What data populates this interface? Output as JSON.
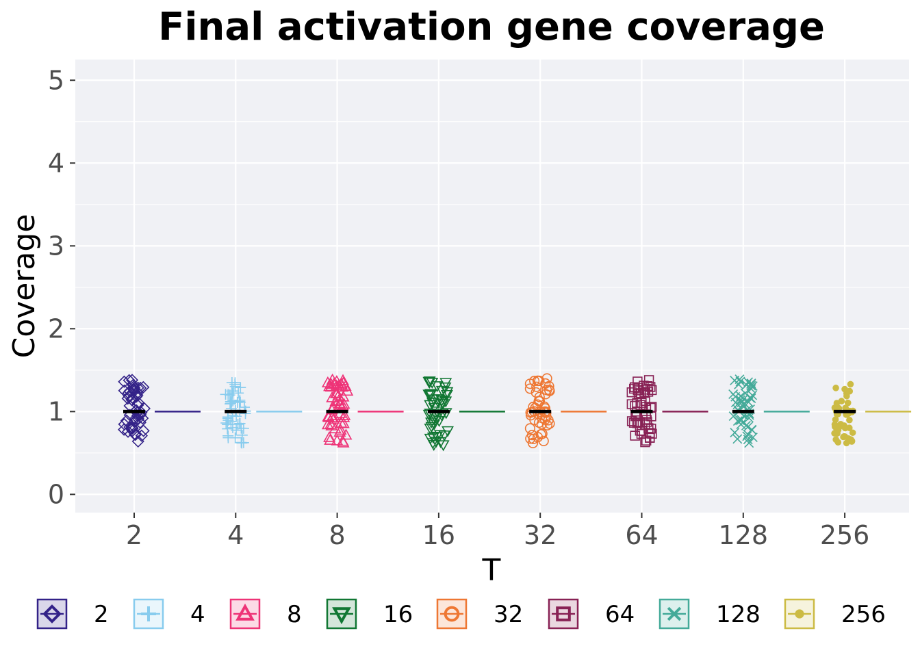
{
  "chart_data": {
    "type": "scatter",
    "title": "Final activation gene coverage",
    "xlabel": "T",
    "ylabel": "Coverage",
    "ylim": [
      -0.22,
      5.25
    ],
    "yticks": [
      0,
      1,
      2,
      3,
      4,
      5
    ],
    "grid": true,
    "legend_position": "bottom",
    "categories": [
      "2",
      "4",
      "8",
      "16",
      "32",
      "64",
      "128",
      "256"
    ],
    "series": [
      {
        "name": "2",
        "color": "#332288",
        "shape": "diamond",
        "median": 1.0,
        "min": 0.64,
        "max": 1.38,
        "count": 50
      },
      {
        "name": "4",
        "color": "#88CCEE",
        "shape": "plus",
        "median": 1.0,
        "min": 0.62,
        "max": 1.35,
        "count": 50
      },
      {
        "name": "8",
        "color": "#EE3377",
        "shape": "triangle-up",
        "median": 1.0,
        "min": 0.62,
        "max": 1.38,
        "count": 50
      },
      {
        "name": "16",
        "color": "#117733",
        "shape": "triangle-down",
        "median": 1.0,
        "min": 0.6,
        "max": 1.37,
        "count": 50
      },
      {
        "name": "32",
        "color": "#EE7733",
        "shape": "circle",
        "median": 1.0,
        "min": 0.62,
        "max": 1.4,
        "count": 50
      },
      {
        "name": "64",
        "color": "#882255",
        "shape": "square",
        "median": 1.0,
        "min": 0.63,
        "max": 1.38,
        "count": 50
      },
      {
        "name": "128",
        "color": "#44AA99",
        "shape": "x",
        "median": 1.0,
        "min": 0.62,
        "max": 1.39,
        "count": 50
      },
      {
        "name": "256",
        "color": "#CCBB44",
        "shape": "dot",
        "median": 1.0,
        "min": 0.62,
        "max": 1.33,
        "count": 50
      }
    ]
  }
}
